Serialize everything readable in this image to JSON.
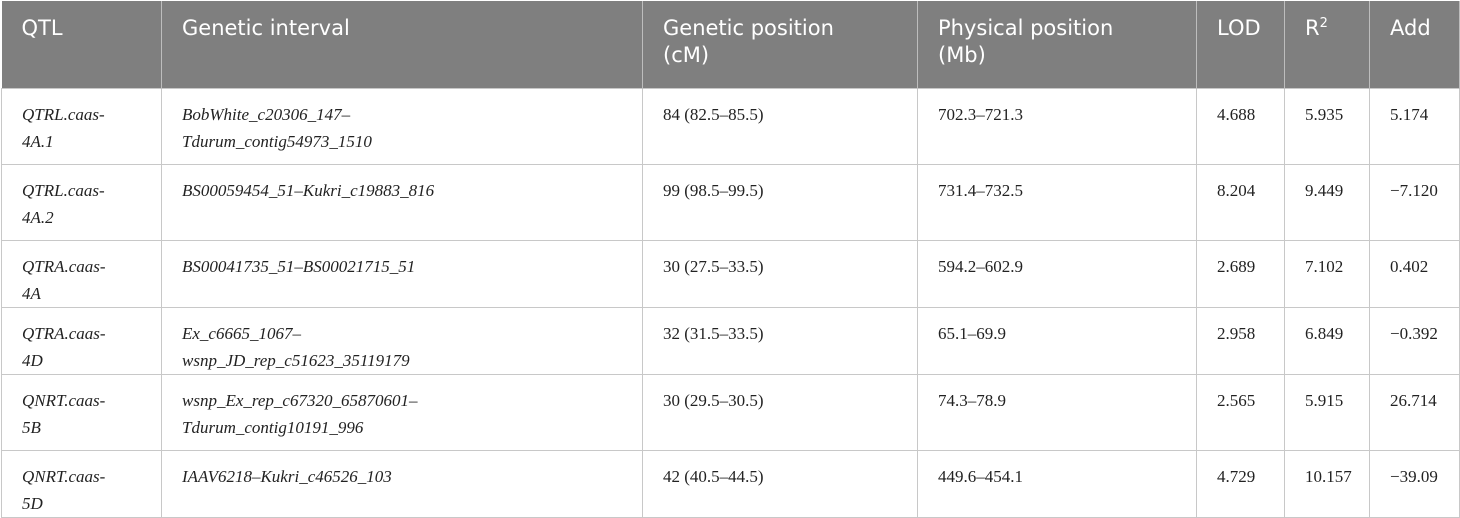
{
  "table": {
    "header": [
      "QTL",
      "Genetic interval",
      "Genetic position (cM)",
      "Physical position (Mb)",
      "LOD",
      {
        "base": "R",
        "sup": "2"
      },
      "Add"
    ],
    "rows": [
      [
        "QTRL.caas-4A.1",
        "BobWhite_c20306_147–Tdurum_contig54973_1510",
        "84 (82.5–85.5)",
        "702.3–721.3",
        "4.688",
        "5.935",
        "5.174"
      ],
      [
        "QTRL.caas-4A.2",
        "BS00059454_51–Kukri_c19883_816",
        "99 (98.5–99.5)",
        "731.4–732.5",
        "8.204",
        "9.449",
        "−7.120"
      ],
      [
        "QTRA.caas-4A",
        "BS00041735_51–BS00021715_51",
        "30 (27.5–33.5)",
        "594.2–602.9",
        "2.689",
        "7.102",
        "0.402"
      ],
      [
        "QTRA.caas-4D",
        "Ex_c6665_1067–wsnp_JD_rep_c51623_35119179",
        "32 (31.5–33.5)",
        "65.1–69.9",
        "2.958",
        "6.849",
        "−0.392"
      ],
      [
        "QNRT.caas-5B",
        "wsnp_Ex_rep_c67320_65870601–Tdurum_contig10191_996",
        "30 (29.5–30.5)",
        "74.3–78.9",
        "2.565",
        "5.915",
        "26.714"
      ],
      [
        "QNRT.caas-5D",
        "IAAV6218–Kukri_c46526_103",
        "42 (40.5–44.5)",
        "449.6–454.1",
        "4.729",
        "10.157",
        "−39.09"
      ]
    ]
  }
}
